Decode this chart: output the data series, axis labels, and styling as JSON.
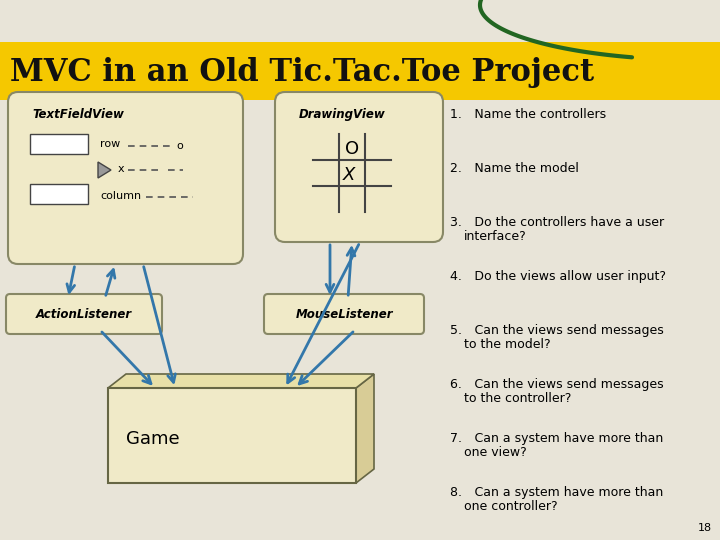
{
  "title": "MVC in an Old Tic.Tac.Toe Project",
  "title_fontsize": 22,
  "title_bg": "#F5C800",
  "bg_color": "#E8E4D8",
  "box_fill": "#F0EAC8",
  "box_edge": "#888866",
  "arrow_color": "#3377AA",
  "text_color": "#000000",
  "items": [
    "Name the controllers",
    "Name the model",
    "Do the controllers have a user\ninterface?",
    "Do the views allow user input?",
    "Can the views send messages\nto the model?",
    "Can the views send messages\nto the controller?",
    "Can a system have more than\none view?",
    "Can a system have more than\none controller?"
  ],
  "page_num": "18",
  "tfv_label": "TextFieldView",
  "dv_label": "DrawingView",
  "al_label": "ActionListener",
  "ml_label": "MouseListener",
  "game_label": "Game",
  "row_label": "row",
  "col_label": "column",
  "x_label": "x",
  "o_label": "o"
}
